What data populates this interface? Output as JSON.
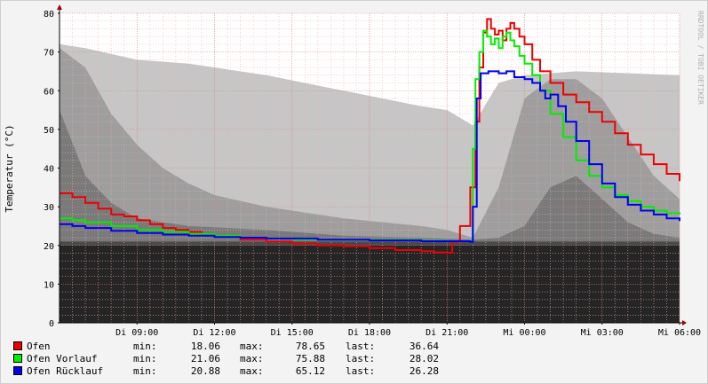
{
  "chart_data": {
    "type": "line",
    "ylabel": "Temperatur (°C)",
    "watermark": "RRDTOOL / TOBI OETIKER",
    "ylim": [
      0,
      80
    ],
    "y_ticks": [
      0,
      10,
      20,
      30,
      40,
      50,
      60,
      70,
      80
    ],
    "x_ticks": [
      {
        "label": "Di 09:00",
        "h": 3
      },
      {
        "label": "Di 12:00",
        "h": 6
      },
      {
        "label": "Di 15:00",
        "h": 9
      },
      {
        "label": "Di 18:00",
        "h": 12
      },
      {
        "label": "Di 21:00",
        "h": 15
      },
      {
        "label": "Mi 00:00",
        "h": 18
      },
      {
        "label": "Mi 03:00",
        "h": 21
      },
      {
        "label": "Mi 06:00",
        "h": 24
      }
    ],
    "x_range_h": [
      0,
      24
    ],
    "background_bands": [
      {
        "color": "#c6c6c6",
        "values": [
          [
            0,
            72
          ],
          [
            1,
            71
          ],
          [
            3,
            68
          ],
          [
            5,
            67
          ],
          [
            8,
            64
          ],
          [
            11,
            60
          ],
          [
            14,
            56
          ],
          [
            15,
            55
          ],
          [
            16,
            51
          ],
          [
            17,
            62
          ],
          [
            18,
            64
          ],
          [
            20,
            65
          ],
          [
            24,
            64
          ]
        ]
      },
      {
        "color": "#9e9e9e",
        "values": [
          [
            0,
            71
          ],
          [
            1,
            66
          ],
          [
            2,
            54
          ],
          [
            3,
            46
          ],
          [
            4,
            40
          ],
          [
            5,
            36
          ],
          [
            6,
            33
          ],
          [
            8,
            30
          ],
          [
            11,
            27
          ],
          [
            14,
            25
          ],
          [
            15,
            24
          ],
          [
            16,
            22
          ],
          [
            17,
            35
          ],
          [
            18,
            58
          ],
          [
            19,
            63
          ],
          [
            20,
            63
          ],
          [
            21,
            58
          ],
          [
            22,
            48
          ],
          [
            23,
            38
          ],
          [
            24,
            32
          ]
        ]
      },
      {
        "color": "#7a7a7a",
        "values": [
          [
            0,
            55
          ],
          [
            1,
            38
          ],
          [
            2,
            31
          ],
          [
            3,
            27
          ],
          [
            5,
            25
          ],
          [
            8,
            24
          ],
          [
            11,
            22.5
          ],
          [
            14,
            22
          ],
          [
            16,
            21.5
          ],
          [
            17,
            22
          ],
          [
            18,
            25
          ],
          [
            19,
            35
          ],
          [
            20,
            38
          ],
          [
            21,
            32
          ],
          [
            22,
            26
          ],
          [
            23,
            23
          ],
          [
            24,
            22
          ]
        ]
      },
      {
        "color": "#4a4a4a",
        "values": [
          [
            0,
            21
          ],
          [
            24,
            21
          ]
        ]
      },
      {
        "color": "#252525",
        "values": [
          [
            0,
            20
          ],
          [
            24,
            20
          ]
        ]
      }
    ],
    "series": [
      {
        "name": "Ofen",
        "color": "#ee0000",
        "min": "18.06",
        "max": "78.65",
        "last": "36.64",
        "values": [
          [
            0,
            33.5
          ],
          [
            0.5,
            32.5
          ],
          [
            1,
            31
          ],
          [
            1.5,
            29.5
          ],
          [
            2,
            28
          ],
          [
            2.5,
            27.5
          ],
          [
            3,
            26.5
          ],
          [
            3.5,
            25.5
          ],
          [
            4,
            24.5
          ],
          [
            4.5,
            24
          ],
          [
            5,
            23.5
          ],
          [
            5.5,
            23
          ],
          [
            6,
            22.5
          ],
          [
            7,
            21.5
          ],
          [
            8,
            21
          ],
          [
            9,
            20.5
          ],
          [
            10,
            20
          ],
          [
            11,
            19.8
          ],
          [
            12,
            19.3
          ],
          [
            13,
            18.8
          ],
          [
            14,
            18.5
          ],
          [
            14.5,
            18.2
          ],
          [
            14.99,
            18.1
          ],
          [
            15.2,
            21
          ],
          [
            15.5,
            25
          ],
          [
            15.9,
            35
          ],
          [
            16.1,
            52
          ],
          [
            16.25,
            66
          ],
          [
            16.4,
            75
          ],
          [
            16.55,
            78.5
          ],
          [
            16.7,
            76
          ],
          [
            16.85,
            74.5
          ],
          [
            17.0,
            75.5
          ],
          [
            17.15,
            73
          ],
          [
            17.3,
            76
          ],
          [
            17.45,
            77.5
          ],
          [
            17.6,
            76
          ],
          [
            17.8,
            74
          ],
          [
            18.0,
            72
          ],
          [
            18.3,
            68
          ],
          [
            18.6,
            65
          ],
          [
            19.0,
            62
          ],
          [
            19.5,
            59
          ],
          [
            20,
            57
          ],
          [
            20.5,
            54.5
          ],
          [
            21,
            52
          ],
          [
            21.5,
            49
          ],
          [
            22,
            46
          ],
          [
            22.5,
            43.5
          ],
          [
            23,
            41
          ],
          [
            23.5,
            38.5
          ],
          [
            24,
            36.6
          ]
        ]
      },
      {
        "name": "Ofen Vorlauf",
        "color": "#00ee00",
        "min": "21.06",
        "max": "75.88",
        "last": "28.02",
        "values": [
          [
            0,
            27
          ],
          [
            0.5,
            26.5
          ],
          [
            1,
            26
          ],
          [
            2,
            25
          ],
          [
            3,
            24
          ],
          [
            4,
            23.5
          ],
          [
            5,
            23
          ],
          [
            6,
            22.5
          ],
          [
            7,
            22
          ],
          [
            8,
            21.8
          ],
          [
            9,
            21.6
          ],
          [
            10,
            21.5
          ],
          [
            12,
            21.4
          ],
          [
            14,
            21.2
          ],
          [
            14.99,
            21.1
          ],
          [
            15.9,
            21.2
          ],
          [
            16.0,
            45
          ],
          [
            16.1,
            63
          ],
          [
            16.25,
            70
          ],
          [
            16.4,
            75.5
          ],
          [
            16.55,
            74
          ],
          [
            16.7,
            72
          ],
          [
            16.85,
            73.5
          ],
          [
            17.0,
            71
          ],
          [
            17.15,
            74
          ],
          [
            17.3,
            75
          ],
          [
            17.45,
            73
          ],
          [
            17.6,
            71.5
          ],
          [
            17.8,
            69
          ],
          [
            18.0,
            67
          ],
          [
            18.3,
            64
          ],
          [
            18.6,
            60
          ],
          [
            19.0,
            54
          ],
          [
            19.5,
            48
          ],
          [
            20,
            42
          ],
          [
            20.5,
            38
          ],
          [
            21,
            35
          ],
          [
            21.5,
            33
          ],
          [
            22,
            31.5
          ],
          [
            22.5,
            30
          ],
          [
            23,
            29
          ],
          [
            23.5,
            28.3
          ],
          [
            24,
            28
          ]
        ]
      },
      {
        "name": "Ofen Rücklauf",
        "color": "#0000ee",
        "min": "20.88",
        "max": "65.12",
        "last": "26.28",
        "values": [
          [
            0,
            25.5
          ],
          [
            0.5,
            25
          ],
          [
            1,
            24.5
          ],
          [
            2,
            23.8
          ],
          [
            3,
            23.2
          ],
          [
            4,
            22.8
          ],
          [
            5,
            22.5
          ],
          [
            6,
            22.2
          ],
          [
            7,
            22
          ],
          [
            8,
            21.8
          ],
          [
            10,
            21.5
          ],
          [
            12,
            21.3
          ],
          [
            14,
            21.1
          ],
          [
            15.9,
            20.9
          ],
          [
            16.0,
            30
          ],
          [
            16.15,
            58
          ],
          [
            16.3,
            64.5
          ],
          [
            16.6,
            65
          ],
          [
            17.0,
            64.5
          ],
          [
            17.3,
            65
          ],
          [
            17.6,
            63.5
          ],
          [
            18.0,
            63
          ],
          [
            18.3,
            62
          ],
          [
            18.6,
            60
          ],
          [
            18.8,
            58
          ],
          [
            19.0,
            59
          ],
          [
            19.3,
            56
          ],
          [
            19.6,
            52
          ],
          [
            20,
            47
          ],
          [
            20.5,
            41
          ],
          [
            21,
            36
          ],
          [
            21.5,
            32.5
          ],
          [
            22,
            30.5
          ],
          [
            22.5,
            29
          ],
          [
            23,
            28
          ],
          [
            23.5,
            27
          ],
          [
            24,
            26.3
          ]
        ]
      }
    ]
  },
  "legend": {
    "min_label": "min:",
    "max_label": "max:",
    "last_label": "last:"
  }
}
